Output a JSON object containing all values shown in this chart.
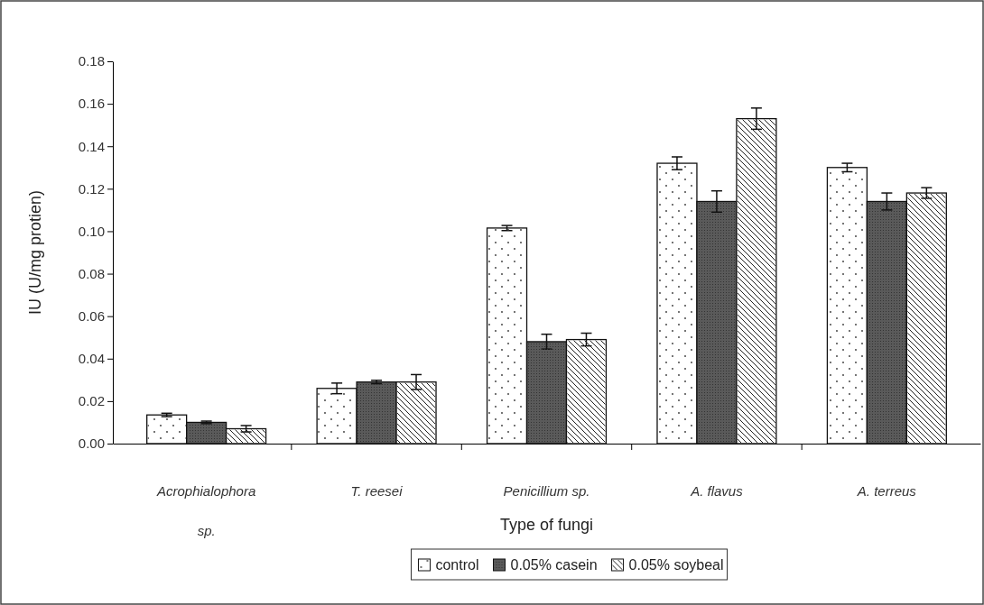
{
  "chart_data": {
    "type": "bar",
    "xlabel": "Type of fungi",
    "ylabel": "IU (U/mg protien)",
    "categories": [
      "Acrophialophora sp.",
      "T. reesei",
      "Penicillium sp.",
      "A. flavus",
      "A. terreus"
    ],
    "series": [
      {
        "name": "control",
        "color": "#ffffff",
        "values": [
          0.0135,
          0.026,
          0.1015,
          0.132,
          0.13
        ],
        "errors": [
          0.0008,
          0.0025,
          0.0012,
          0.003,
          0.002
        ]
      },
      {
        "name": "0.05% casein",
        "color": "#5a5a5a",
        "values": [
          0.01,
          0.029,
          0.048,
          0.114,
          0.114
        ],
        "errors": [
          0.0006,
          0.0008,
          0.0035,
          0.005,
          0.004
        ]
      },
      {
        "name": "0.05% soybeal",
        "color": "#ffffff",
        "values": [
          0.007,
          0.029,
          0.049,
          0.153,
          0.118
        ],
        "errors": [
          0.0015,
          0.0035,
          0.003,
          0.005,
          0.0025
        ]
      }
    ],
    "ylim": [
      0,
      0.18
    ],
    "yticks": [
      {
        "value": 0,
        "label": "0.00"
      },
      0.02,
      0.04,
      0.06,
      0.08,
      {
        "value": 0.1,
        "label": "0.10"
      },
      0.12,
      0.14,
      0.16,
      0.18
    ],
    "grid": false,
    "legend": "bottom"
  }
}
